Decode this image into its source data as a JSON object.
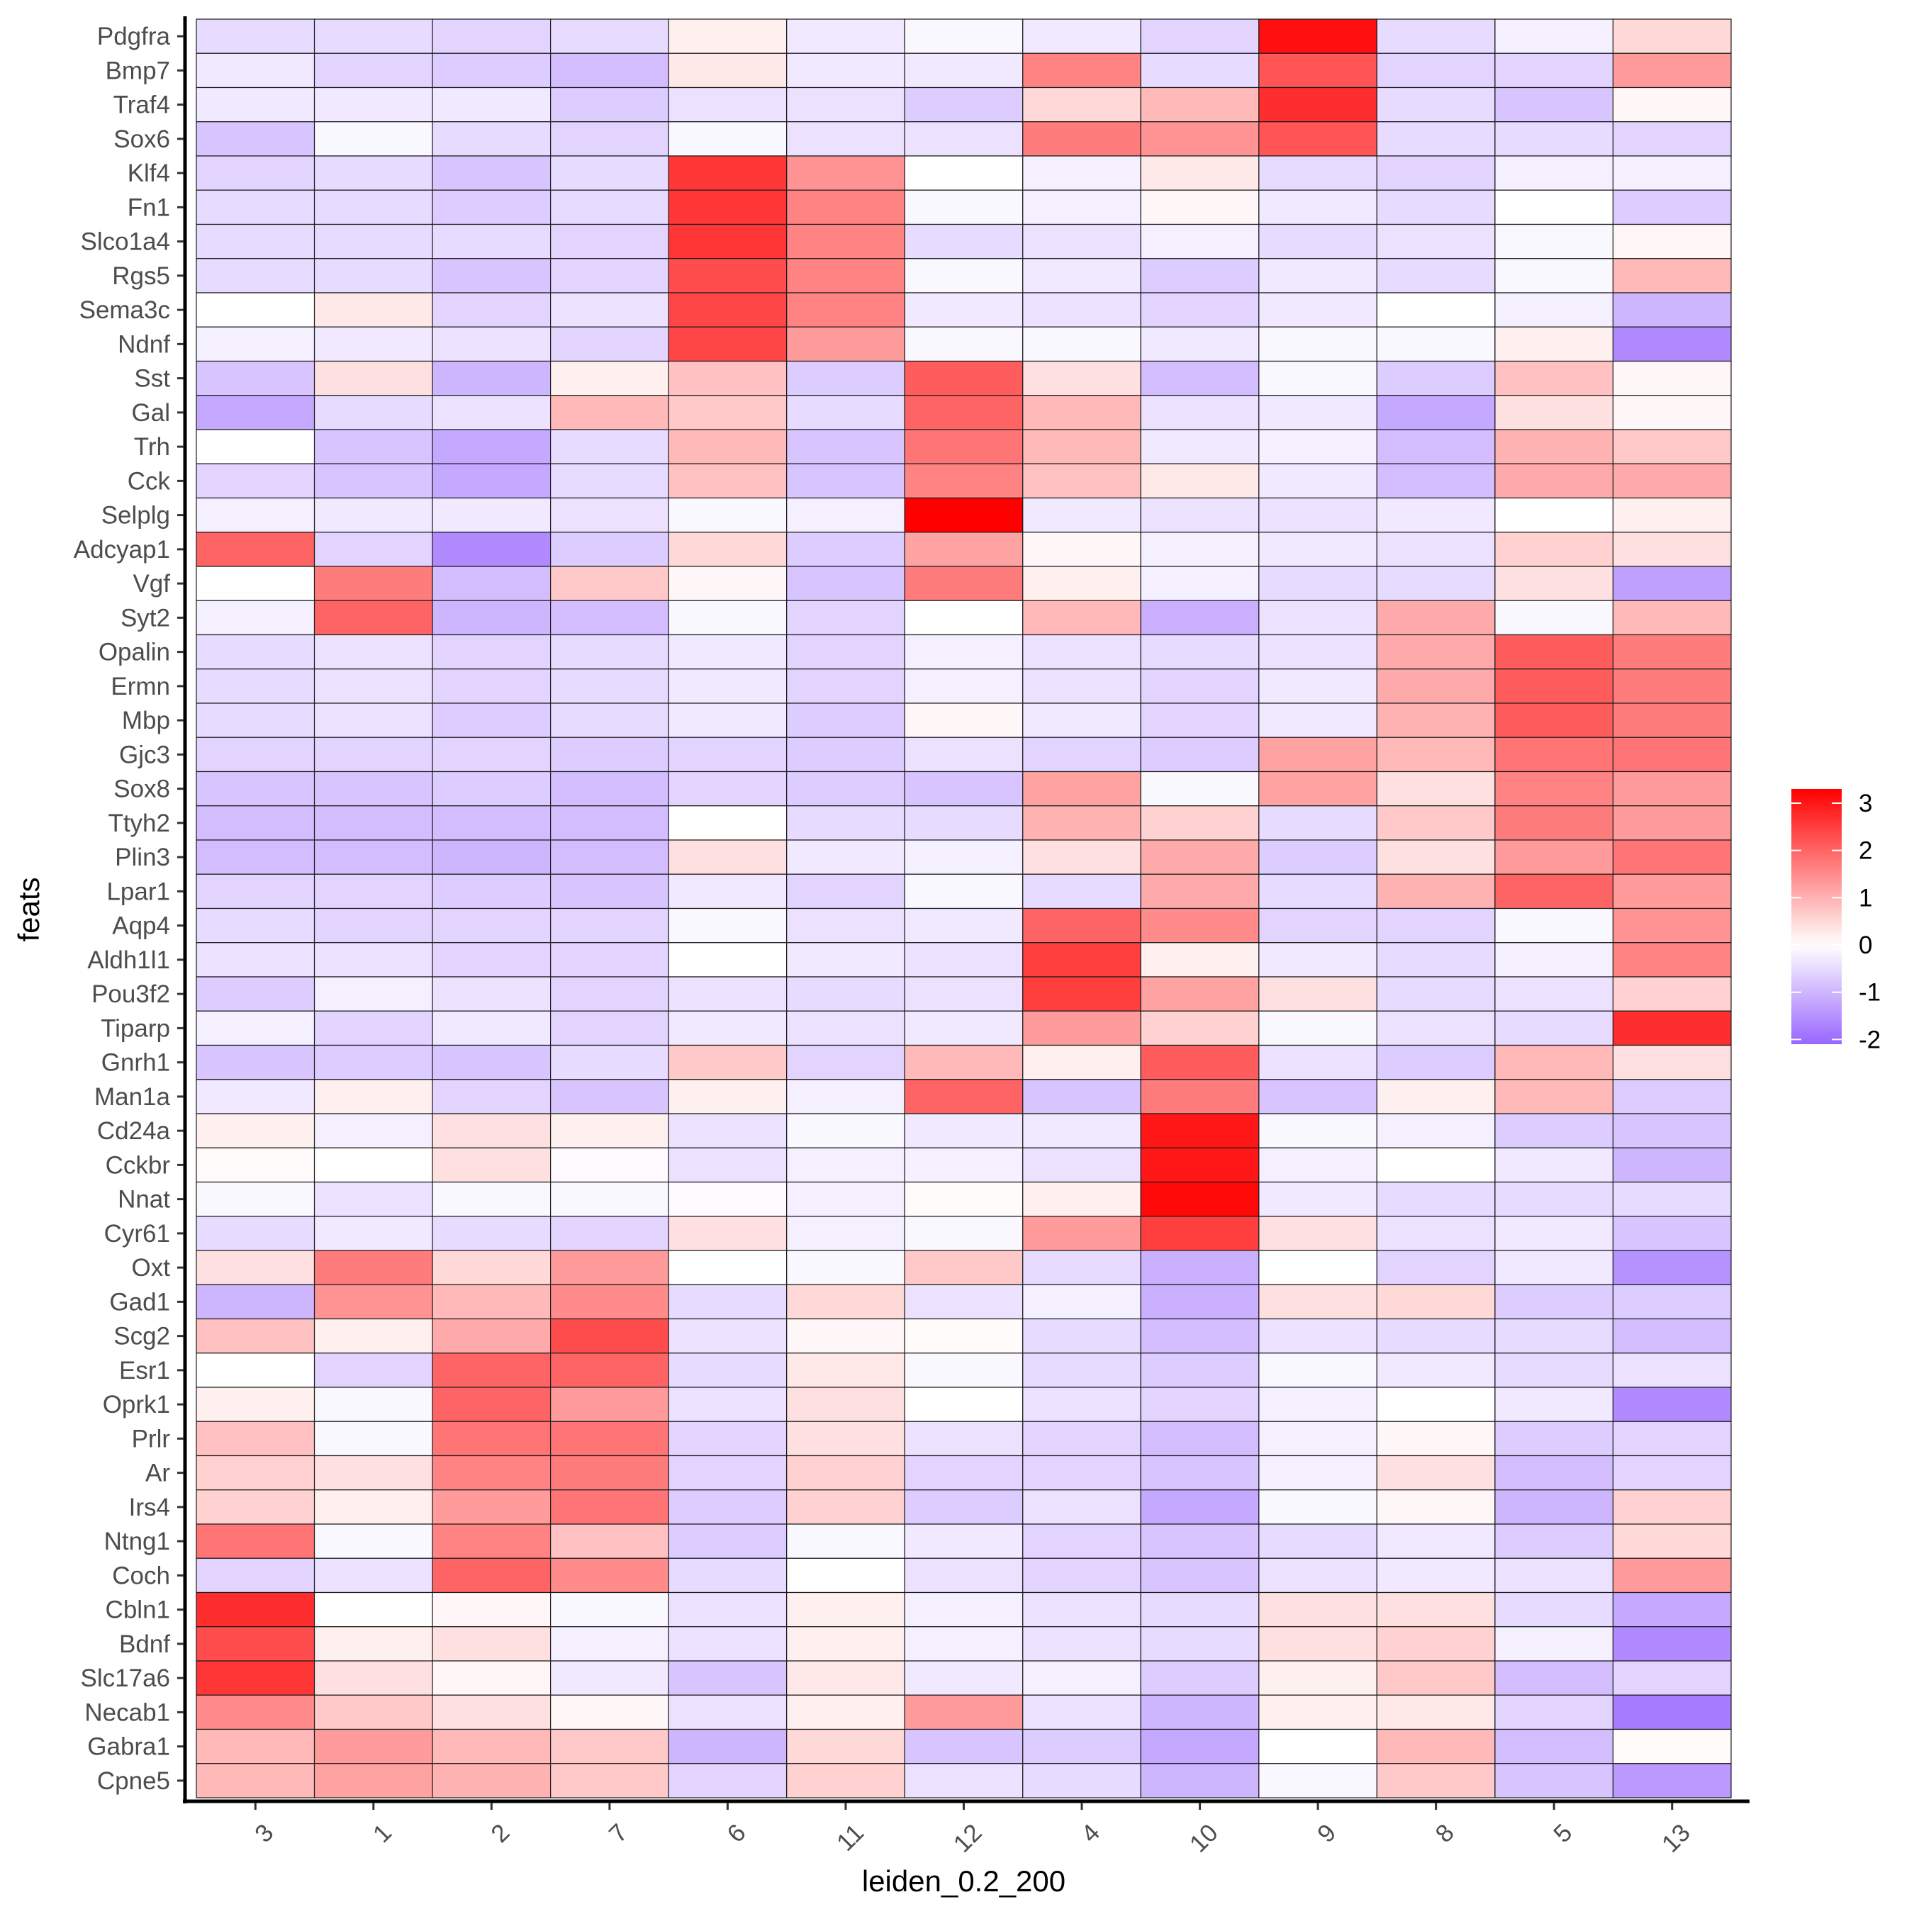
{
  "chart_data": {
    "type": "heatmap",
    "title": "",
    "xlabel": "leiden_0.2_200",
    "ylabel": "feats",
    "x_categories": [
      "3",
      "1",
      "2",
      "7",
      "6",
      "11",
      "12",
      "4",
      "10",
      "9",
      "8",
      "5",
      "13"
    ],
    "y_categories": [
      "Pdgfra",
      "Bmp7",
      "Traf4",
      "Sox6",
      "Klf4",
      "Fn1",
      "Slco1a4",
      "Rgs5",
      "Sema3c",
      "Ndnf",
      "Sst",
      "Gal",
      "Trh",
      "Cck",
      "Selplg",
      "Adcyap1",
      "Vgf",
      "Syt2",
      "Opalin",
      "Ermn",
      "Mbp",
      "Gjc3",
      "Sox8",
      "Ttyh2",
      "Plin3",
      "Lpar1",
      "Aqp4",
      "Aldh1l1",
      "Pou3f2",
      "Tiparp",
      "Gnrh1",
      "Man1a",
      "Cd24a",
      "Cckbr",
      "Nnat",
      "Cyr61",
      "Oxt",
      "Gad1",
      "Scg2",
      "Esr1",
      "Oprk1",
      "Prlr",
      "Ar",
      "Irs4",
      "Ntng1",
      "Coch",
      "Cbln1",
      "Bdnf",
      "Slc17a6",
      "Necab1",
      "Gabra1",
      "Cpne5"
    ],
    "values": [
      [
        -0.5,
        -0.5,
        -0.6,
        -0.5,
        0.2,
        -0.3,
        -0.1,
        -0.3,
        -0.6,
        3.1,
        -0.5,
        -0.2,
        0.5
      ],
      [
        -0.3,
        -0.6,
        -0.7,
        -0.9,
        0.3,
        -0.3,
        -0.3,
        1.6,
        -0.5,
        2.2,
        -0.6,
        -0.6,
        1.3
      ],
      [
        -0.3,
        -0.3,
        -0.3,
        -0.7,
        -0.4,
        -0.4,
        -0.7,
        0.5,
        0.9,
        2.7,
        -0.5,
        -0.8,
        0.1
      ],
      [
        -0.8,
        -0.1,
        -0.5,
        -0.6,
        -0.1,
        -0.4,
        -0.4,
        1.7,
        1.4,
        2.2,
        -0.5,
        -0.5,
        -0.6
      ],
      [
        -0.6,
        -0.5,
        -0.8,
        -0.5,
        2.6,
        1.4,
        0.0,
        -0.2,
        0.3,
        -0.5,
        -0.6,
        -0.2,
        -0.2
      ],
      [
        -0.5,
        -0.5,
        -0.7,
        -0.5,
        2.6,
        1.6,
        -0.1,
        -0.2,
        0.1,
        -0.3,
        -0.5,
        0.0,
        -0.7
      ],
      [
        -0.5,
        -0.5,
        -0.5,
        -0.6,
        2.6,
        1.6,
        -0.5,
        -0.4,
        -0.2,
        -0.5,
        -0.4,
        -0.1,
        0.1
      ],
      [
        -0.5,
        -0.5,
        -0.8,
        -0.6,
        2.3,
        1.6,
        -0.1,
        -0.3,
        -0.7,
        -0.3,
        -0.5,
        -0.1,
        0.9
      ],
      [
        0.0,
        0.3,
        -0.6,
        -0.4,
        2.4,
        1.6,
        -0.3,
        -0.4,
        -0.6,
        -0.3,
        0.0,
        -0.2,
        -1.0
      ],
      [
        -0.2,
        -0.3,
        -0.4,
        -0.6,
        2.4,
        1.3,
        -0.1,
        -0.1,
        -0.3,
        -0.1,
        -0.1,
        0.2,
        -1.6
      ],
      [
        -0.8,
        0.4,
        -1.0,
        0.2,
        0.8,
        -0.7,
        2.1,
        0.4,
        -0.9,
        -0.1,
        -0.7,
        0.8,
        0.1
      ],
      [
        -1.2,
        -0.5,
        -0.4,
        0.9,
        0.7,
        -0.5,
        2.0,
        0.9,
        -0.4,
        -0.3,
        -1.2,
        0.4,
        0.1
      ],
      [
        0.0,
        -0.8,
        -1.2,
        -0.5,
        0.9,
        -0.8,
        1.8,
        0.9,
        -0.3,
        -0.2,
        -0.9,
        1.0,
        0.7
      ],
      [
        -0.6,
        -0.8,
        -1.2,
        -0.5,
        0.8,
        -0.8,
        1.6,
        0.8,
        0.3,
        -0.3,
        -0.9,
        1.1,
        1.1
      ],
      [
        -0.2,
        -0.3,
        -0.3,
        -0.4,
        -0.1,
        -0.2,
        3.3,
        -0.3,
        -0.4,
        -0.4,
        -0.3,
        0.0,
        0.2
      ],
      [
        2.0,
        -0.6,
        -1.6,
        -0.7,
        0.5,
        -0.7,
        1.2,
        0.1,
        -0.2,
        -0.3,
        -0.4,
        0.6,
        0.4
      ],
      [
        0.0,
        1.7,
        -0.9,
        0.7,
        0.1,
        -0.8,
        1.7,
        0.2,
        -0.2,
        -0.5,
        -0.5,
        0.4,
        -1.3
      ],
      [
        -0.2,
        2.0,
        -1.0,
        -0.9,
        -0.1,
        -0.6,
        0.0,
        0.9,
        -1.1,
        -0.4,
        1.1,
        -0.1,
        0.9
      ],
      [
        -0.5,
        -0.4,
        -0.6,
        -0.5,
        -0.3,
        -0.6,
        -0.2,
        -0.4,
        -0.5,
        -0.4,
        1.1,
        2.1,
        1.7
      ],
      [
        -0.5,
        -0.4,
        -0.6,
        -0.5,
        -0.3,
        -0.6,
        -0.2,
        -0.4,
        -0.6,
        -0.3,
        1.1,
        2.1,
        1.7
      ],
      [
        -0.5,
        -0.4,
        -0.7,
        -0.5,
        -0.3,
        -0.7,
        0.1,
        -0.3,
        -0.6,
        -0.3,
        1.0,
        2.1,
        1.7
      ],
      [
        -0.6,
        -0.6,
        -0.6,
        -0.7,
        -0.6,
        -0.7,
        -0.4,
        -0.6,
        -0.7,
        1.2,
        0.9,
        1.8,
        1.8
      ],
      [
        -0.8,
        -0.8,
        -0.7,
        -0.9,
        -0.6,
        -0.7,
        -0.8,
        1.2,
        -0.1,
        1.2,
        0.4,
        1.6,
        1.3
      ],
      [
        -0.9,
        -0.9,
        -0.9,
        -0.9,
        0.0,
        -0.5,
        -0.5,
        1.0,
        0.6,
        -0.5,
        0.7,
        1.7,
        1.3
      ],
      [
        -0.9,
        -0.9,
        -1.0,
        -0.9,
        0.4,
        -0.3,
        -0.2,
        0.4,
        1.1,
        -0.7,
        0.4,
        1.3,
        1.8
      ],
      [
        -0.6,
        -0.6,
        -0.7,
        -0.8,
        -0.3,
        -0.6,
        -0.1,
        -0.5,
        1.1,
        -0.5,
        1.0,
        2.0,
        1.3
      ],
      [
        -0.5,
        -0.6,
        -0.6,
        -0.6,
        -0.1,
        -0.4,
        -0.3,
        2.0,
        1.5,
        -0.6,
        -0.6,
        -0.1,
        1.4
      ],
      [
        -0.4,
        -0.4,
        -0.6,
        -0.6,
        0.0,
        -0.3,
        -0.4,
        2.5,
        0.2,
        -0.3,
        -0.5,
        -0.2,
        1.6
      ],
      [
        -0.7,
        -0.2,
        -0.4,
        -0.6,
        -0.4,
        -0.5,
        -0.4,
        2.5,
        1.2,
        0.4,
        -0.5,
        -0.4,
        0.6
      ],
      [
        -0.2,
        -0.6,
        -0.3,
        -0.6,
        -0.3,
        -0.4,
        -0.3,
        1.3,
        0.6,
        -0.1,
        -0.4,
        -0.5,
        2.7
      ],
      [
        -0.8,
        -0.7,
        -0.8,
        -0.5,
        0.7,
        -0.6,
        0.9,
        0.2,
        2.1,
        -0.4,
        -0.7,
        0.9,
        0.4
      ],
      [
        -0.3,
        0.2,
        -0.6,
        -0.8,
        0.2,
        -0.2,
        2.0,
        -0.8,
        1.7,
        -0.8,
        0.2,
        0.9,
        -0.7
      ],
      [
        0.2,
        -0.2,
        0.4,
        0.2,
        -0.4,
        -0.1,
        -0.3,
        -0.3,
        3.0,
        -0.1,
        -0.2,
        -0.7,
        -0.8
      ],
      [
        0.05,
        0.0,
        0.4,
        -0.05,
        -0.4,
        -0.2,
        -0.2,
        -0.4,
        3.0,
        -0.2,
        0.0,
        -0.3,
        -1.0
      ],
      [
        -0.1,
        -0.4,
        -0.1,
        -0.1,
        -0.05,
        -0.2,
        0.05,
        0.2,
        3.2,
        -0.3,
        -0.5,
        -0.5,
        -0.5
      ],
      [
        -0.5,
        -0.3,
        -0.5,
        -0.6,
        0.4,
        -0.2,
        -0.1,
        1.3,
        2.5,
        0.4,
        -0.4,
        -0.3,
        -0.8
      ],
      [
        0.4,
        1.7,
        0.5,
        1.3,
        0.0,
        -0.1,
        0.7,
        -0.5,
        -1.1,
        0.0,
        -0.6,
        -0.3,
        -1.5
      ],
      [
        -1.0,
        1.4,
        0.9,
        1.5,
        -0.5,
        0.5,
        -0.4,
        -0.2,
        -1.1,
        0.4,
        0.5,
        -0.7,
        -0.7
      ],
      [
        0.8,
        0.2,
        1.1,
        2.3,
        -0.4,
        0.1,
        0.05,
        -0.5,
        -0.9,
        -0.4,
        -0.5,
        -0.5,
        -0.9
      ],
      [
        0.0,
        -0.6,
        2.0,
        2.0,
        -0.5,
        0.3,
        -0.1,
        -0.5,
        -0.7,
        -0.1,
        -0.3,
        -0.5,
        -0.4
      ],
      [
        0.2,
        -0.1,
        2.0,
        1.3,
        -0.4,
        0.4,
        0.0,
        -0.4,
        -0.6,
        -0.2,
        0.0,
        -0.3,
        -1.6
      ],
      [
        0.8,
        -0.1,
        1.8,
        1.8,
        -0.6,
        0.4,
        -0.4,
        -0.6,
        -0.9,
        -0.2,
        0.1,
        -0.7,
        -0.6
      ],
      [
        0.6,
        0.4,
        1.6,
        1.7,
        -0.6,
        0.6,
        -0.6,
        -0.6,
        -0.8,
        -0.2,
        0.4,
        -0.9,
        -0.6
      ],
      [
        0.6,
        0.2,
        1.3,
        1.8,
        -0.7,
        0.6,
        -0.7,
        -0.4,
        -1.2,
        -0.1,
        0.1,
        -1.0,
        0.6
      ],
      [
        1.8,
        -0.1,
        1.6,
        0.8,
        -0.7,
        -0.1,
        -0.3,
        -0.6,
        -0.8,
        -0.5,
        -0.3,
        -0.7,
        0.5
      ],
      [
        -0.6,
        -0.4,
        2.0,
        1.5,
        -0.5,
        0.0,
        -0.4,
        -0.6,
        -0.8,
        -0.4,
        -0.3,
        -0.4,
        1.3
      ],
      [
        2.7,
        0.0,
        0.1,
        -0.1,
        -0.4,
        0.2,
        -0.2,
        -0.4,
        -0.5,
        0.4,
        0.4,
        -0.5,
        -1.2
      ],
      [
        2.3,
        0.2,
        0.4,
        -0.2,
        -0.4,
        0.2,
        -0.2,
        -0.4,
        -0.5,
        0.4,
        0.6,
        -0.2,
        -1.6
      ],
      [
        2.6,
        0.4,
        0.1,
        -0.3,
        -0.8,
        0.3,
        -0.3,
        -0.2,
        -0.7,
        0.2,
        0.7,
        -0.9,
        -0.6
      ],
      [
        1.5,
        0.7,
        0.4,
        0.1,
        -0.4,
        0.2,
        1.3,
        -0.4,
        -1.0,
        0.2,
        0.3,
        -0.6,
        -1.8
      ],
      [
        0.9,
        1.3,
        0.9,
        0.7,
        -1.0,
        0.5,
        -0.8,
        -0.7,
        -1.2,
        0.0,
        0.9,
        -0.9,
        0.05
      ],
      [
        0.9,
        1.2,
        1.0,
        0.7,
        -0.6,
        0.6,
        -0.4,
        -0.5,
        -1.0,
        -0.1,
        0.7,
        -0.8,
        -1.4
      ]
    ],
    "color_scale": {
      "low": "#9966FF",
      "mid": "#FFFFFF",
      "high": "#FF0000",
      "midpoint": 0,
      "range": [
        -2.1,
        3.3
      ]
    },
    "legend": {
      "position": "right",
      "ticks": [
        "3",
        "2",
        "1",
        "0",
        "-1",
        "-2"
      ],
      "tick_values": [
        3,
        2,
        1,
        0,
        -1,
        -2
      ]
    },
    "grid": false
  }
}
